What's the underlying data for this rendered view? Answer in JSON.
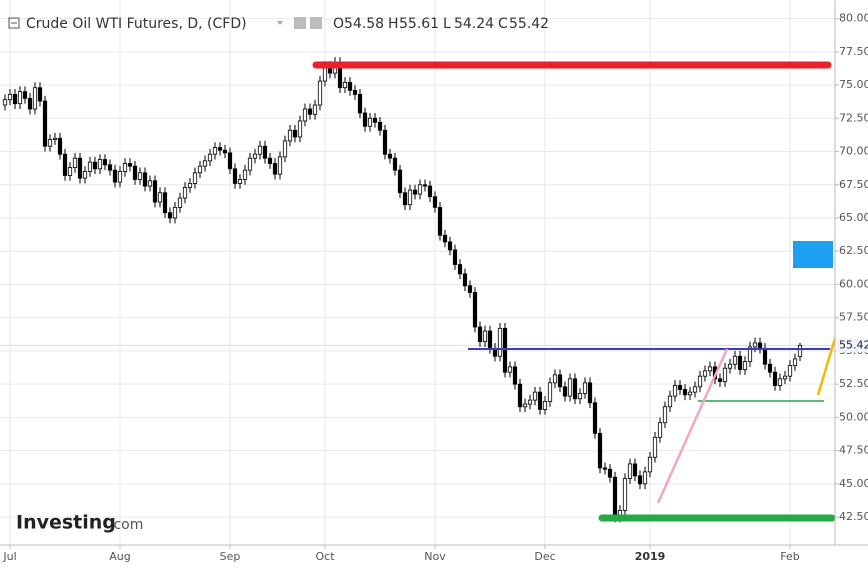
{
  "chart_data": {
    "type": "candlestick",
    "title": "Crude Oil WTI Futures, D, (CFD)",
    "ohlc_labels": [
      "O",
      "H",
      "L",
      "C"
    ],
    "logo": {
      "brand": "Investing",
      "suffix": ".com"
    },
    "up_color": "#ffffff",
    "down_color": "#000000",
    "edge_color": "#000000",
    "grid": true,
    "xlim": [
      -1,
      166
    ],
    "xticks": [
      {
        "value": 1,
        "label": "Jul"
      },
      {
        "value": 23,
        "label": "Aug"
      },
      {
        "value": 45,
        "label": "Sep"
      },
      {
        "value": 64,
        "label": "Oct"
      },
      {
        "value": 86,
        "label": "Nov"
      },
      {
        "value": 108,
        "label": "Dec"
      },
      {
        "value": 129,
        "label": "2019"
      },
      {
        "value": 157,
        "label": "Feb"
      }
    ],
    "ylim": [
      40.4,
      81.4
    ],
    "yticks": [
      {
        "value": 42.5,
        "label": "42.50"
      },
      {
        "value": 45,
        "label": "45.00"
      },
      {
        "value": 47.5,
        "label": "47.50"
      },
      {
        "value": 50,
        "label": "50.00"
      },
      {
        "value": 52.5,
        "label": "52.50"
      },
      {
        "value": 55,
        "label": "55.00"
      },
      {
        "value": 57.5,
        "label": "57.50"
      },
      {
        "value": 60,
        "label": "60.00"
      },
      {
        "value": 62.5,
        "label": "62.50"
      },
      {
        "value": 65,
        "label": "65.00"
      },
      {
        "value": 67.5,
        "label": "67.50"
      },
      {
        "value": 70,
        "label": "70.00"
      },
      {
        "value": 72.5,
        "label": "72.50"
      },
      {
        "value": 75,
        "label": "75.00"
      },
      {
        "value": 77.5,
        "label": "77.50"
      },
      {
        "value": 80,
        "label": "80.00"
      }
    ],
    "open": [
      73.5,
      73.9,
      74.3,
      73.6,
      74.5,
      74.0,
      73.2,
      74.8,
      73.8,
      70.4,
      70.9,
      71.0,
      69.8,
      68.2,
      68.8,
      69.5,
      68.0,
      68.5,
      69.2,
      68.7,
      69.4,
      69.0,
      68.6,
      67.7,
      68.5,
      69.1,
      68.9,
      67.9,
      68.4,
      67.4,
      67.8,
      66.2,
      66.9,
      65.4,
      65.0,
      65.8,
      66.5,
      67.3,
      67.6,
      68.4,
      68.9,
      69.3,
      69.8,
      70.3,
      70.1,
      69.9,
      68.7,
      67.6,
      67.9,
      68.6,
      69.5,
      69.8,
      70.4,
      69.5,
      69.1,
      68.3,
      69.6,
      70.8,
      71.6,
      71.1,
      72.3,
      73.2,
      72.8,
      73.5,
      75.3,
      76.4,
      75.9,
      76.7,
      74.8,
      75.2,
      74.6,
      74.3,
      72.9,
      71.9,
      72.5,
      72.2,
      71.6,
      69.8,
      69.5,
      68.6,
      66.9,
      66.0,
      67.1,
      66.8,
      67.5,
      67.4,
      66.6,
      65.8,
      63.7,
      63.2,
      62.6,
      61.5,
      60.8,
      59.9,
      59.4,
      56.8,
      55.7,
      56.5,
      55.2,
      54.6,
      56.7,
      53.4,
      53.8,
      52.5,
      50.8,
      51.0,
      51.3,
      51.9,
      50.6,
      51.2,
      52.6,
      53.2,
      52.3,
      51.6,
      52.9,
      51.4,
      51.8,
      52.6,
      51.1,
      48.8,
      46.2,
      46.1,
      45.5,
      42.5,
      43.0,
      45.4,
      46.5,
      45.6,
      45.0,
      45.9,
      47.0,
      48.5,
      49.6,
      50.8,
      51.6,
      52.4,
      52.1,
      51.7,
      51.9,
      52.3,
      53.1,
      53.5,
      53.8,
      52.9,
      52.7,
      53.7,
      54.0,
      54.6,
      53.6,
      54.2,
      55.3,
      55.6,
      55.2,
      54.0,
      53.4,
      52.4,
      52.9,
      53.1,
      53.9,
      54.58
    ],
    "high": [
      74.3,
      74.7,
      74.7,
      74.9,
      74.9,
      74.4,
      75.2,
      75.2,
      74.2,
      71.3,
      71.4,
      71.4,
      70.2,
      69.2,
      69.9,
      69.9,
      68.9,
      69.6,
      69.6,
      69.8,
      69.8,
      69.4,
      69.0,
      68.9,
      69.5,
      69.5,
      69.3,
      68.8,
      68.8,
      68.2,
      68.2,
      67.3,
      67.3,
      65.8,
      66.2,
      66.9,
      67.7,
      68.0,
      68.8,
      69.3,
      69.7,
      70.2,
      70.7,
      70.7,
      70.5,
      70.3,
      69.1,
      68.3,
      69.0,
      69.9,
      70.2,
      70.8,
      70.8,
      69.9,
      69.5,
      70.0,
      71.2,
      72.0,
      72.0,
      72.7,
      73.6,
      73.6,
      73.9,
      75.7,
      76.8,
      76.8,
      77.1,
      77.1,
      75.6,
      75.6,
      75.0,
      74.7,
      73.3,
      72.9,
      72.9,
      72.6,
      72.0,
      70.2,
      69.9,
      69.0,
      67.3,
      67.5,
      67.5,
      67.9,
      67.9,
      67.8,
      67.0,
      66.2,
      64.1,
      63.6,
      63.0,
      61.9,
      61.2,
      60.3,
      59.8,
      57.2,
      56.9,
      56.9,
      55.6,
      57.1,
      57.1,
      54.2,
      54.2,
      52.9,
      51.4,
      51.7,
      52.3,
      52.3,
      51.6,
      53.0,
      53.6,
      53.6,
      52.7,
      53.3,
      53.3,
      52.2,
      53.0,
      53.0,
      51.5,
      49.2,
      46.6,
      46.5,
      45.9,
      43.4,
      45.8,
      46.9,
      46.9,
      46.0,
      46.3,
      47.4,
      48.9,
      50.0,
      51.2,
      52.0,
      52.8,
      52.8,
      52.5,
      52.3,
      52.7,
      53.5,
      53.9,
      54.2,
      54.2,
      53.3,
      54.1,
      54.4,
      55.0,
      55.0,
      54.6,
      55.7,
      56.0,
      56.0,
      55.6,
      54.4,
      53.8,
      53.3,
      53.5,
      54.3,
      54.8,
      55.61
    ],
    "low": [
      73.1,
      73.5,
      73.2,
      73.2,
      73.6,
      72.8,
      72.8,
      73.4,
      70.0,
      70.0,
      70.5,
      69.4,
      67.8,
      67.8,
      68.4,
      67.6,
      67.6,
      68.1,
      68.3,
      68.3,
      68.6,
      68.2,
      67.3,
      67.3,
      68.1,
      68.5,
      67.5,
      67.5,
      67.0,
      67.0,
      65.8,
      65.8,
      65.0,
      64.6,
      64.6,
      65.4,
      66.1,
      66.9,
      67.2,
      68.0,
      68.5,
      68.9,
      69.4,
      69.7,
      69.5,
      68.3,
      67.2,
      67.2,
      67.5,
      68.2,
      69.1,
      69.4,
      69.1,
      68.7,
      67.9,
      67.9,
      69.2,
      70.4,
      70.7,
      70.7,
      71.9,
      72.4,
      72.4,
      73.1,
      74.9,
      75.5,
      75.5,
      74.4,
      74.4,
      74.2,
      73.9,
      72.5,
      71.5,
      71.5,
      71.8,
      71.2,
      69.4,
      69.1,
      68.2,
      66.5,
      65.6,
      65.6,
      66.4,
      66.4,
      67.0,
      66.2,
      65.4,
      63.3,
      62.8,
      62.2,
      61.1,
      60.4,
      59.5,
      59.0,
      56.4,
      55.3,
      55.3,
      54.8,
      54.2,
      54.2,
      53.0,
      53.0,
      52.1,
      50.4,
      50.4,
      50.6,
      50.9,
      50.2,
      50.2,
      50.8,
      52.2,
      51.9,
      51.2,
      51.2,
      51.0,
      51.0,
      51.4,
      50.7,
      48.4,
      45.8,
      45.7,
      45.1,
      42.1,
      42.1,
      42.6,
      45.0,
      45.2,
      44.6,
      44.6,
      45.5,
      46.6,
      48.1,
      49.2,
      50.4,
      51.2,
      51.7,
      51.3,
      51.3,
      51.5,
      51.9,
      52.7,
      53.1,
      52.5,
      52.3,
      52.3,
      53.3,
      53.6,
      53.2,
      53.2,
      53.8,
      54.9,
      54.8,
      53.6,
      53.0,
      52.0,
      52.0,
      52.5,
      52.7,
      53.5,
      54.24
    ],
    "close": [
      73.9,
      74.3,
      73.6,
      74.5,
      74.0,
      73.2,
      74.8,
      73.8,
      70.4,
      70.9,
      71.0,
      69.8,
      68.2,
      68.8,
      69.5,
      68.0,
      68.5,
      69.2,
      68.7,
      69.4,
      69.0,
      68.6,
      67.7,
      68.5,
      69.1,
      68.9,
      67.9,
      68.4,
      67.4,
      67.8,
      66.2,
      66.9,
      65.4,
      65.0,
      65.8,
      66.5,
      67.3,
      67.6,
      68.4,
      68.9,
      69.3,
      69.8,
      70.3,
      70.1,
      69.9,
      68.7,
      67.6,
      67.9,
      68.6,
      69.5,
      69.8,
      70.4,
      69.5,
      69.1,
      68.3,
      69.6,
      70.8,
      71.6,
      71.1,
      72.3,
      73.2,
      72.8,
      73.5,
      75.3,
      76.4,
      75.9,
      76.7,
      74.8,
      75.2,
      74.6,
      74.3,
      72.9,
      71.9,
      72.5,
      72.2,
      71.6,
      69.8,
      69.5,
      68.6,
      66.9,
      66.0,
      67.1,
      66.8,
      67.5,
      67.4,
      66.6,
      65.8,
      63.7,
      63.2,
      62.6,
      61.5,
      60.8,
      59.9,
      59.4,
      56.8,
      55.7,
      56.5,
      55.2,
      54.6,
      56.7,
      53.4,
      53.8,
      52.5,
      50.8,
      51.0,
      51.3,
      51.9,
      50.6,
      51.2,
      52.6,
      53.2,
      52.3,
      51.6,
      52.9,
      51.4,
      51.8,
      52.6,
      51.1,
      48.8,
      46.2,
      46.1,
      45.5,
      42.5,
      43.0,
      45.4,
      46.5,
      45.6,
      45.0,
      45.9,
      47.0,
      48.5,
      49.6,
      50.8,
      51.6,
      52.4,
      52.1,
      51.7,
      51.9,
      52.3,
      53.1,
      53.5,
      53.8,
      52.9,
      52.7,
      53.7,
      54.0,
      54.6,
      53.6,
      54.2,
      55.3,
      55.6,
      55.2,
      54.0,
      53.4,
      52.4,
      52.9,
      53.1,
      53.9,
      54.4,
      55.42
    ]
  }
}
